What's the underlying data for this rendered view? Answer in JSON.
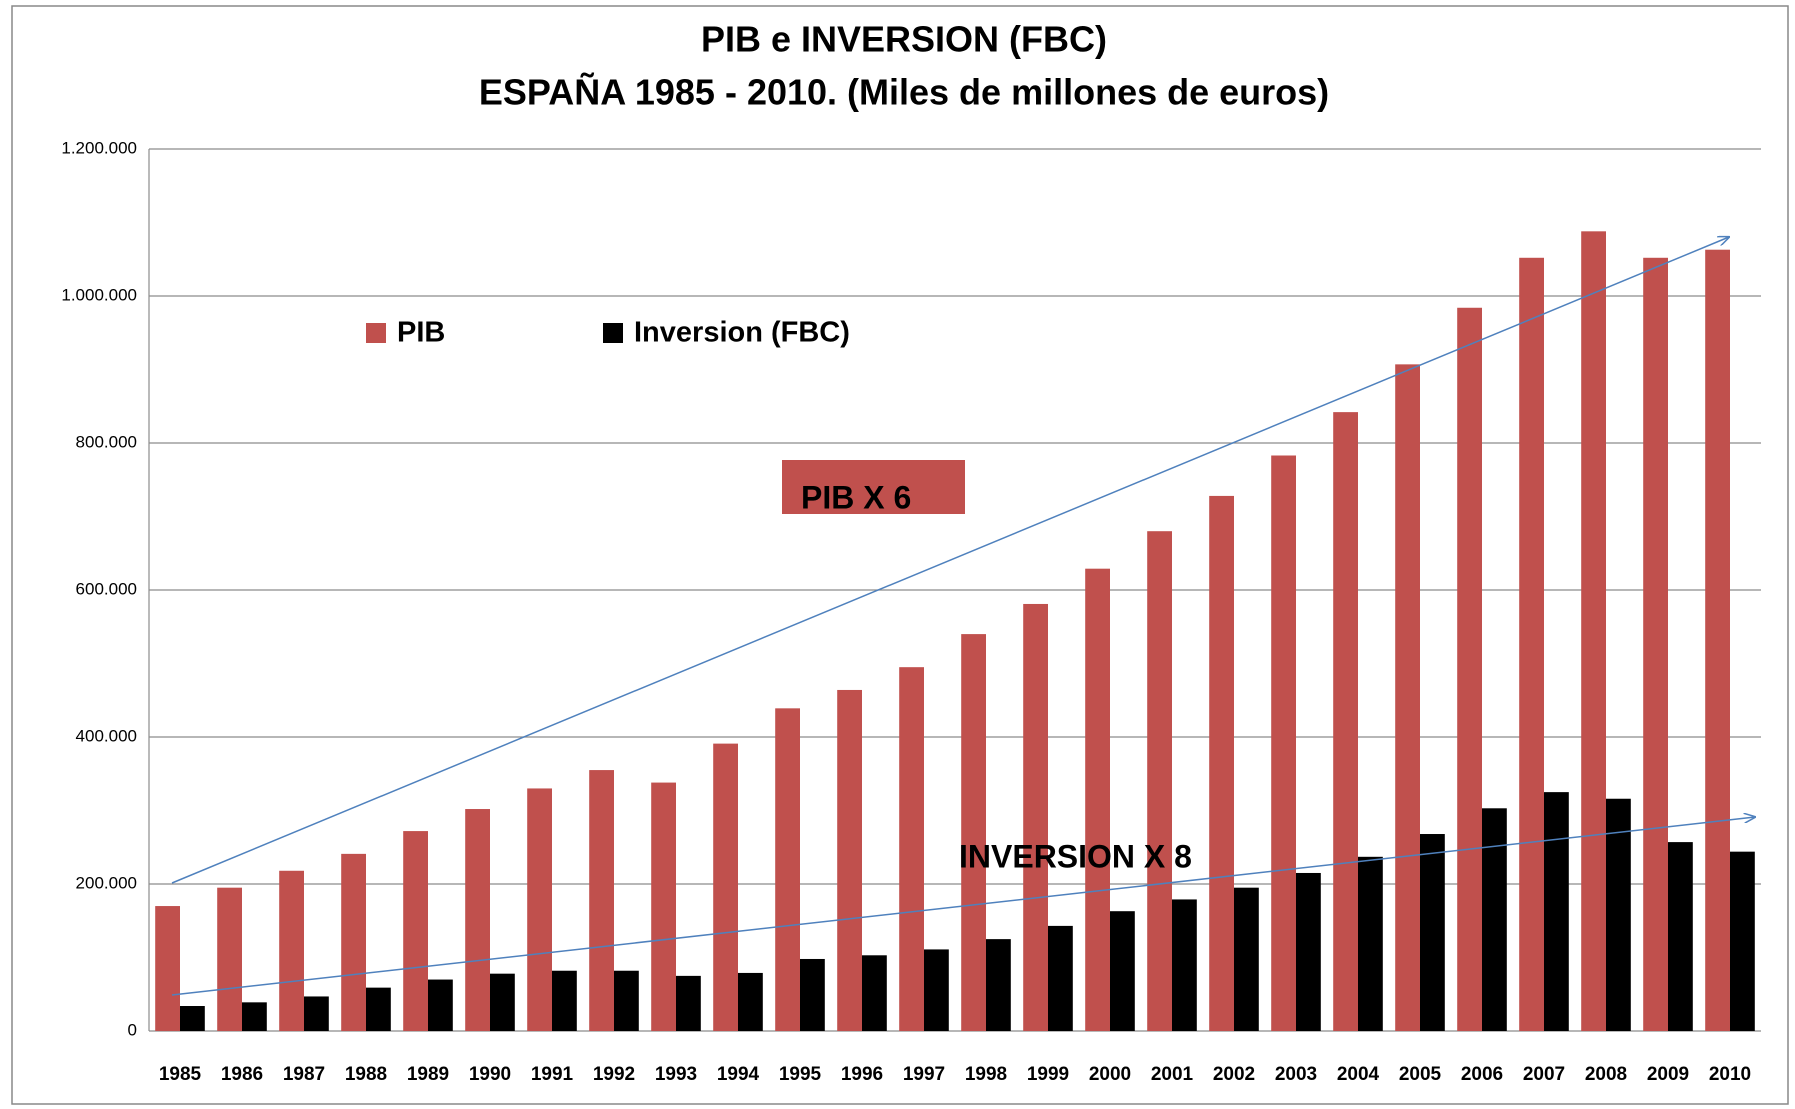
{
  "chart_data": {
    "type": "bar",
    "title": "PIB e INVERSION (FBC)",
    "subtitle": "ESPAÑA 1985 - 2010. (Miles de millones de euros)",
    "categories": [
      "1985",
      "1986",
      "1987",
      "1988",
      "1989",
      "1990",
      "1991",
      "1992",
      "1993",
      "1994",
      "1995",
      "1996",
      "1997",
      "1998",
      "1999",
      "2000",
      "2001",
      "2002",
      "2003",
      "2004",
      "2005",
      "2006",
      "2007",
      "2008",
      "2009",
      "2010"
    ],
    "series": [
      {
        "name": "PIB",
        "color": "#c0504d",
        "values": [
          170000,
          195000,
          218000,
          241000,
          272000,
          302000,
          330000,
          355000,
          338000,
          391000,
          439000,
          464000,
          495000,
          540000,
          581000,
          629000,
          680000,
          728000,
          783000,
          842000,
          907000,
          984000,
          1052000,
          1088000,
          1052000,
          1063000
        ]
      },
      {
        "name": "Inversion (FBC)",
        "color": "#000000",
        "values": [
          34000,
          39000,
          47000,
          59000,
          70000,
          78000,
          82000,
          82000,
          75000,
          79000,
          98000,
          103000,
          111000,
          125000,
          143000,
          163000,
          179000,
          195000,
          215000,
          237000,
          268000,
          303000,
          325000,
          316000,
          257000,
          244000
        ]
      }
    ],
    "ylim": [
      0,
      1200000
    ],
    "yticks": [
      0,
      {
        "value": 200000,
        "label": "200.000"
      },
      {
        "value": 400000,
        "label": "400.000"
      },
      {
        "value": 600000,
        "label": "600.000"
      },
      {
        "value": 800000,
        "label": "800.000"
      },
      {
        "value": 1000000,
        "label": "1.000.000"
      },
      {
        "value": 1200000,
        "label": "1.200.000"
      }
    ],
    "grid": true,
    "legend": "upper left",
    "annotations": [
      "PIB X 6",
      "INVERSION X 8"
    ]
  }
}
